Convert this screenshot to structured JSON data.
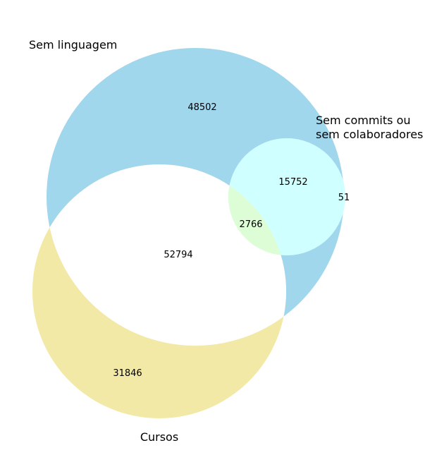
{
  "diagram": {
    "type": "venn3",
    "sets": [
      {
        "key": "A",
        "label": "Sem linguagem",
        "color": "#a0d7ec"
      },
      {
        "key": "B",
        "label": "Cursos",
        "color": "#f2e9a6"
      },
      {
        "key": "C",
        "label_lines": [
          "Sem commits ou",
          "sem colaboradores"
        ],
        "color": "#cfffff"
      }
    ],
    "regions": {
      "A_only": "48502",
      "B_only": "31846",
      "C_only": "51",
      "AB": "52794",
      "AC": "15752",
      "BC": "",
      "ABC": "2766"
    },
    "region_colors": {
      "AB": "#ffffff",
      "AC": "#cfffff",
      "ABC": "#dcfdd6"
    }
  }
}
